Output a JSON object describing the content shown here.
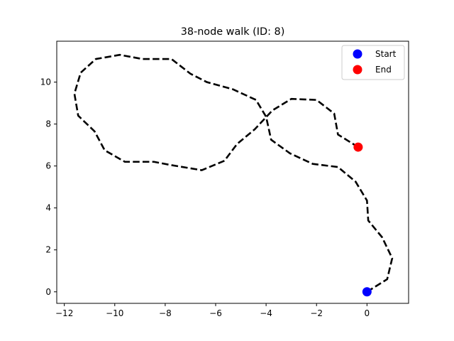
{
  "chart_data": {
    "type": "line",
    "title": "38-node walk (ID: 8)",
    "xlabel": "",
    "ylabel": "",
    "xlim": [
      -12.3,
      1.65
    ],
    "ylim": [
      -0.55,
      11.95
    ],
    "xticks": [
      -12,
      -10,
      -8,
      -6,
      -4,
      -2,
      0
    ],
    "yticks": [
      0,
      2,
      4,
      6,
      8,
      10
    ],
    "grid": false,
    "legend_position": "top-right",
    "series": [
      {
        "name": "walk",
        "style": "dashed",
        "color": "#000000",
        "points": [
          [
            0,
            0
          ],
          [
            0.8,
            0.6
          ],
          [
            1.0,
            1.6
          ],
          [
            0.6,
            2.6
          ],
          [
            0.05,
            3.4
          ],
          [
            0.0,
            4.35
          ],
          [
            -0.45,
            5.25
          ],
          [
            -1.15,
            5.95
          ],
          [
            -2.15,
            6.1
          ],
          [
            -3.05,
            6.6
          ],
          [
            -3.8,
            7.25
          ],
          [
            -4.0,
            8.35
          ],
          [
            -4.4,
            9.15
          ],
          [
            -5.3,
            9.65
          ],
          [
            -6.35,
            10.0
          ],
          [
            -7.0,
            10.4
          ],
          [
            -7.75,
            11.1
          ],
          [
            -8.9,
            11.1
          ],
          [
            -9.8,
            11.3
          ],
          [
            -10.75,
            11.1
          ],
          [
            -11.35,
            10.45
          ],
          [
            -11.6,
            9.45
          ],
          [
            -11.45,
            8.4
          ],
          [
            -10.8,
            7.65
          ],
          [
            -10.4,
            6.75
          ],
          [
            -9.6,
            6.2
          ],
          [
            -8.45,
            6.2
          ],
          [
            -7.8,
            6.05
          ],
          [
            -6.55,
            5.8
          ],
          [
            -5.65,
            6.25
          ],
          [
            -5.15,
            7.05
          ],
          [
            -4.45,
            7.75
          ],
          [
            -3.75,
            8.65
          ],
          [
            -3.0,
            9.2
          ],
          [
            -2.0,
            9.15
          ],
          [
            -1.3,
            8.5
          ],
          [
            -1.15,
            7.5
          ],
          [
            -0.35,
            6.9
          ]
        ]
      }
    ],
    "markers": [
      {
        "name": "Start",
        "x": 0,
        "y": 0,
        "color": "#0000ff"
      },
      {
        "name": "End",
        "x": -0.35,
        "y": 6.9,
        "color": "#ff0000"
      }
    ]
  }
}
